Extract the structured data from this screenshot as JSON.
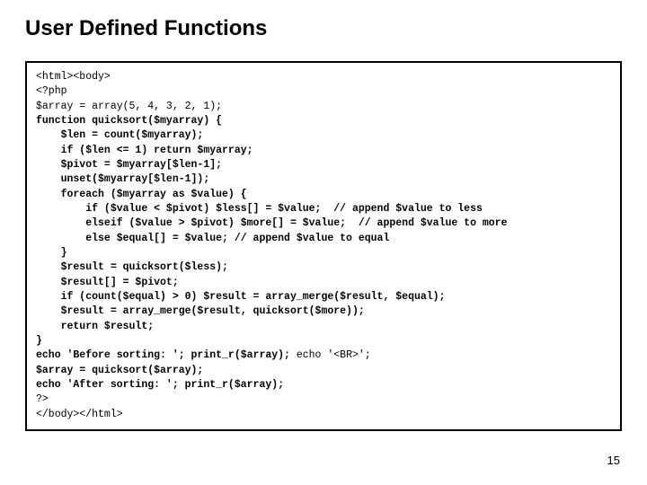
{
  "slide": {
    "title": "User Defined Functions",
    "page_number": "15"
  },
  "code": {
    "font_family": "Courier New",
    "border_color": "#000000",
    "background_color": "#ffffff",
    "text_color": "#000000",
    "font_size": 11.5,
    "line1": "<html><body>",
    "line2": "<?php",
    "line3": "$array = array(5, 4, 3, 2, 1);",
    "line4": "function quicksort($myarray) {",
    "line5": "    $len = count($myarray);",
    "line6": "    if ($len <= 1) return $myarray;",
    "line7": "    $pivot = $myarray[$len-1];",
    "line8": "    unset($myarray[$len-1]);",
    "line9": "    foreach ($myarray as $value) {",
    "line10": "        if ($value < $pivot) $less[] = $value;  // append $value to less",
    "line11": "        elseif ($value > $pivot) $more[] = $value;  // append $value to more",
    "line12": "        else $equal[] = $value; // append $value to equal",
    "line13": "    }",
    "line14": "    $result = quicksort($less);",
    "line15": "    $result[] = $pivot;",
    "line16": "    if (count($equal) > 0) $result = array_merge($result, $equal);",
    "line17": "    $result = array_merge($result, quicksort($more));",
    "line18": "    return $result;",
    "line19": "}",
    "line20a": "echo 'Before sorting: '; print_r($array);",
    "line20b": " echo '<BR>';",
    "line21": "$array = quicksort($array);",
    "line22": "echo 'After sorting: '; print_r($array);",
    "line23": "?>",
    "line24": "</body></html>"
  }
}
